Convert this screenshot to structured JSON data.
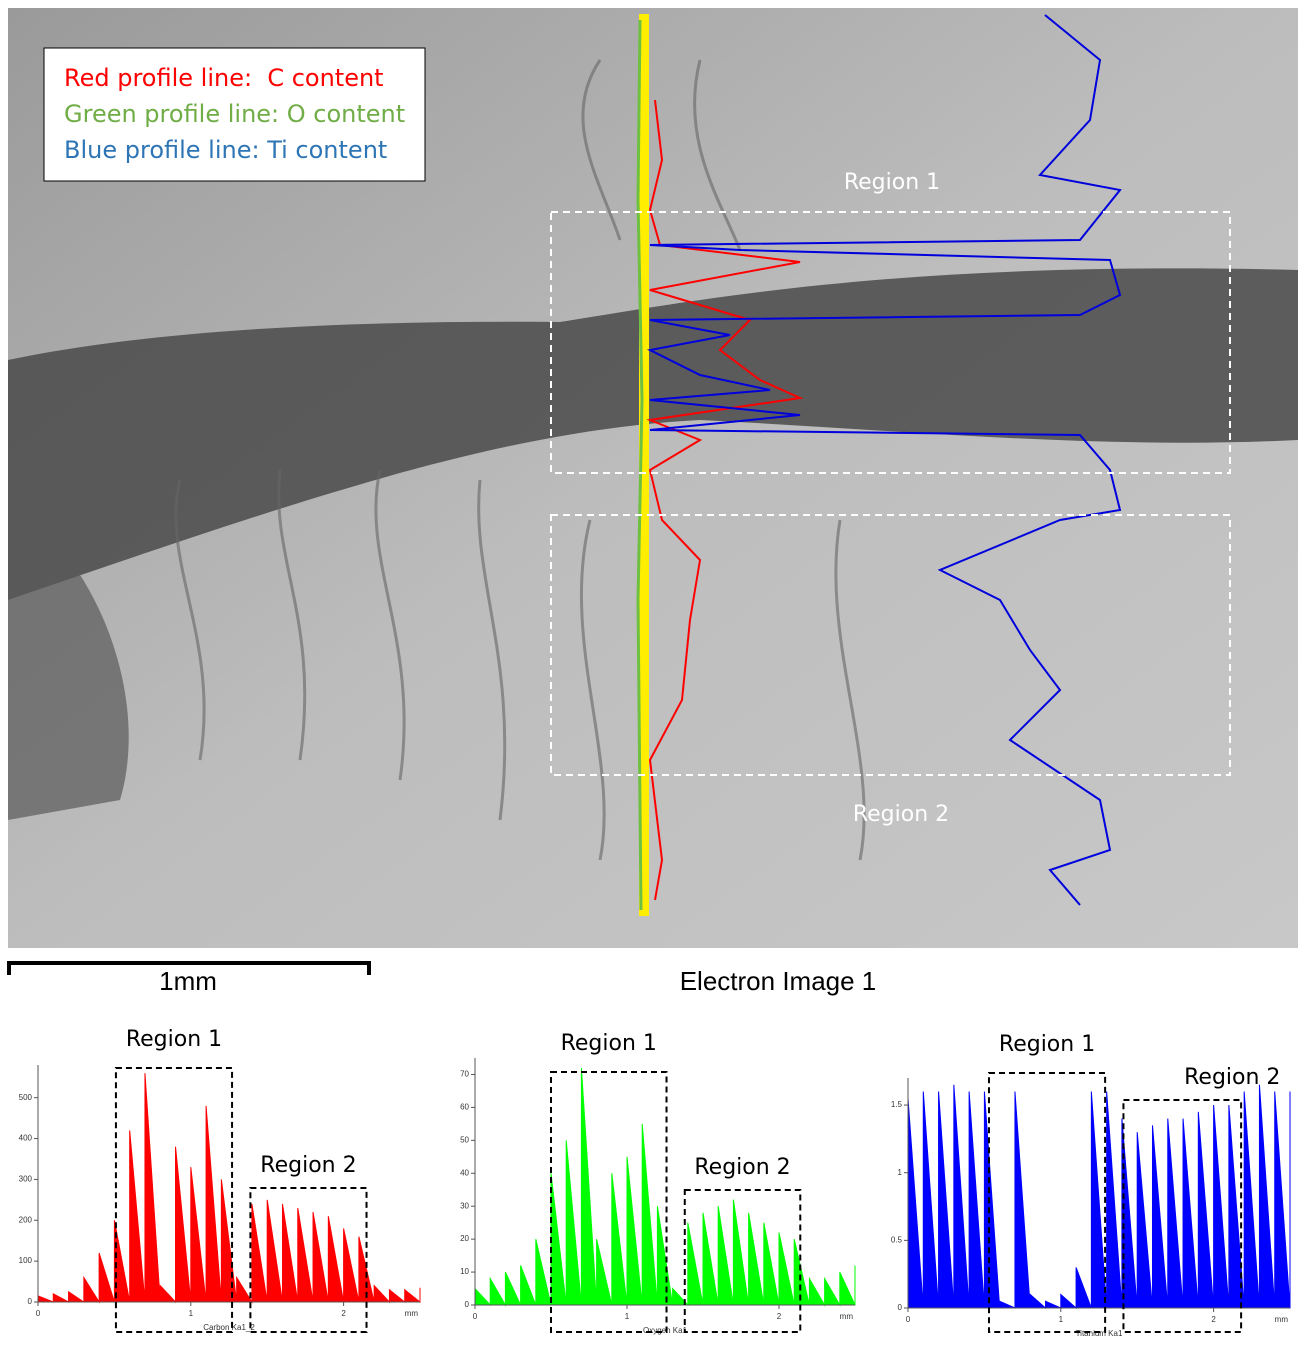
{
  "image": {
    "legend": [
      "Red profile line:  C content",
      "Green profile line: O content",
      "Blue profile line: Ti content"
    ],
    "regions": [
      "Region 1",
      "Region 2"
    ],
    "scale_bar": "1mm",
    "caption": "Electron Image 1"
  },
  "chart_data": [
    {
      "type": "area",
      "series_label": "Carbon Ka1_2",
      "x_label": "mm",
      "color": "#ff0000",
      "x": [
        0,
        0.1,
        0.2,
        0.3,
        0.4,
        0.5,
        0.6,
        0.7,
        0.8,
        0.9,
        1,
        1.1,
        1.2,
        1.3,
        1.4,
        1.5,
        1.6,
        1.7,
        1.8,
        1.9,
        2,
        2.1,
        2.2,
        2.3,
        2.4,
        2.5
      ],
      "values": [
        15,
        20,
        25,
        60,
        120,
        200,
        420,
        560,
        40,
        380,
        330,
        480,
        300,
        60,
        240,
        250,
        240,
        230,
        220,
        210,
        180,
        160,
        40,
        30,
        30,
        35
      ],
      "xlim": [
        0,
        2.5
      ],
      "ylim": [
        0,
        580
      ],
      "xticks": [
        0,
        1,
        2
      ],
      "yticks": [
        0,
        100,
        200,
        300,
        400,
        500
      ],
      "annotations": [
        {
          "text": "Region 1",
          "xrange": [
            0.51,
            1.27
          ]
        },
        {
          "text": "Region 2",
          "xrange": [
            1.39,
            2.15
          ]
        }
      ]
    },
    {
      "type": "area",
      "series_label": "Oxygen Ka1",
      "x_label": "mm",
      "color": "#00ff00",
      "x": [
        0,
        0.1,
        0.2,
        0.3,
        0.4,
        0.5,
        0.6,
        0.7,
        0.8,
        0.9,
        1,
        1.1,
        1.2,
        1.3,
        1.4,
        1.5,
        1.6,
        1.7,
        1.8,
        1.9,
        2,
        2.1,
        2.2,
        2.3,
        2.4,
        2.5
      ],
      "values": [
        5,
        8,
        10,
        12,
        20,
        40,
        50,
        72,
        20,
        40,
        45,
        55,
        30,
        5,
        25,
        28,
        30,
        32,
        28,
        25,
        22,
        20,
        8,
        8,
        10,
        12
      ],
      "xlim": [
        0,
        2.5
      ],
      "ylim": [
        0,
        75
      ],
      "xticks": [
        0,
        1,
        2
      ],
      "yticks": [
        0,
        10,
        20,
        30,
        40,
        50,
        60,
        70
      ],
      "annotations": [
        {
          "text": "Region 1",
          "xrange": [
            0.5,
            1.26
          ]
        },
        {
          "text": "Region 2",
          "xrange": [
            1.38,
            2.14
          ]
        }
      ]
    },
    {
      "type": "area",
      "series_label": "Titanium Ka1",
      "x_label": "mm",
      "color": "#0000ff",
      "x": [
        0,
        0.1,
        0.2,
        0.3,
        0.4,
        0.5,
        0.6,
        0.7,
        0.8,
        0.9,
        1,
        1.1,
        1.2,
        1.3,
        1.4,
        1.5,
        1.6,
        1.7,
        1.8,
        1.9,
        2,
        2.1,
        2.2,
        2.3,
        2.4,
        2.5
      ],
      "values": [
        1.55,
        1.6,
        1.6,
        1.65,
        1.6,
        1.6,
        0.05,
        1.6,
        0.1,
        0.05,
        0.1,
        0.3,
        1.6,
        1.6,
        1.4,
        1.3,
        1.35,
        1.4,
        1.4,
        1.45,
        1.5,
        1.5,
        1.6,
        1.65,
        1.6,
        1.6
      ],
      "xlim": [
        0,
        2.5
      ],
      "ylim": [
        0,
        1.7
      ],
      "xticks": [
        0,
        1,
        2
      ],
      "yticks": [
        0,
        0.5,
        1,
        1.5
      ],
      "annotations": [
        {
          "text": "Region 1",
          "xrange": [
            0.53,
            1.29
          ]
        },
        {
          "text": "Region 2",
          "xrange": [
            1.41,
            2.18
          ]
        }
      ]
    }
  ]
}
